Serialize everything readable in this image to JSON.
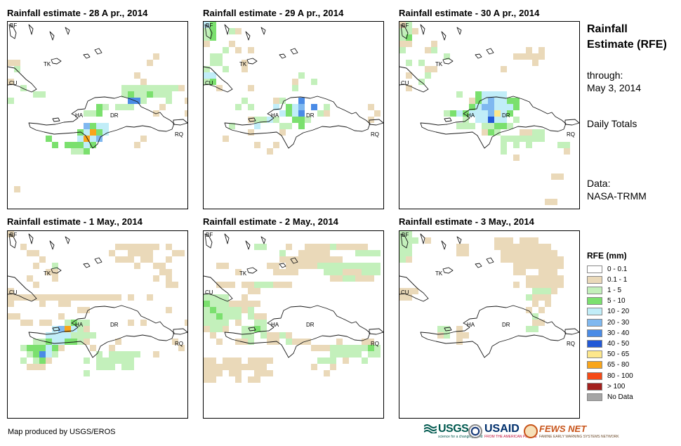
{
  "panels": [
    {
      "title": "Rainfall estimate - 28 A pr., 2014"
    },
    {
      "title": "Rainfall estimate - 29 A pr., 2014"
    },
    {
      "title": "Rainfall estimate - 30 A pr., 2014"
    },
    {
      "title": "Rainfall estimate - 1 May., 2014"
    },
    {
      "title": "Rainfall estimate - 2 May., 2014"
    },
    {
      "title": "Rainfall estimate - 3 May., 2014"
    }
  ],
  "place_labels": {
    "bf": "BF",
    "tk": "TK",
    "cu": "CU",
    "ha": "HA",
    "dr": "DR",
    "rq": "RQ"
  },
  "sidebar": {
    "heading": "Rainfall Estimate (RFE)",
    "through_label": "through:",
    "through_date": "May 3, 2014",
    "period": "Daily Totals",
    "source_label": "Data:",
    "source": "NASA-TRMM"
  },
  "legend": {
    "title": "RFE (mm)",
    "items": [
      {
        "label": "0 - 0.1",
        "color": "#ffffff"
      },
      {
        "label": "0.1 - 1",
        "color": "#ead9b9"
      },
      {
        "label": "1 - 5",
        "color": "#c3f0bb"
      },
      {
        "label": "5 - 10",
        "color": "#7be06e"
      },
      {
        "label": "10 - 20",
        "color": "#c1edf8"
      },
      {
        "label": "20 - 30",
        "color": "#7fb8f0"
      },
      {
        "label": "30 - 40",
        "color": "#4a8be6"
      },
      {
        "label": "40 - 50",
        "color": "#2259d6"
      },
      {
        "label": "50 - 65",
        "color": "#fde78c"
      },
      {
        "label": "65 - 80",
        "color": "#f9a51a"
      },
      {
        "label": "80 - 100",
        "color": "#f54a17"
      },
      {
        "label": "> 100",
        "color": "#a3201e"
      },
      {
        "label": "No Data",
        "color": "#a6a6a6"
      }
    ]
  },
  "footer": {
    "credit": "Map produced by USGS/EROS",
    "usgs": "USGS",
    "usgs_tagline": "science for a changing world",
    "usaid": "USAID",
    "usaid_tagline": "FROM THE AMERICAN PEOPLE",
    "fews": "FEWS NET",
    "fews_tagline": "FAMINE EARLY WARNING SYSTEMS NETWORK"
  }
}
